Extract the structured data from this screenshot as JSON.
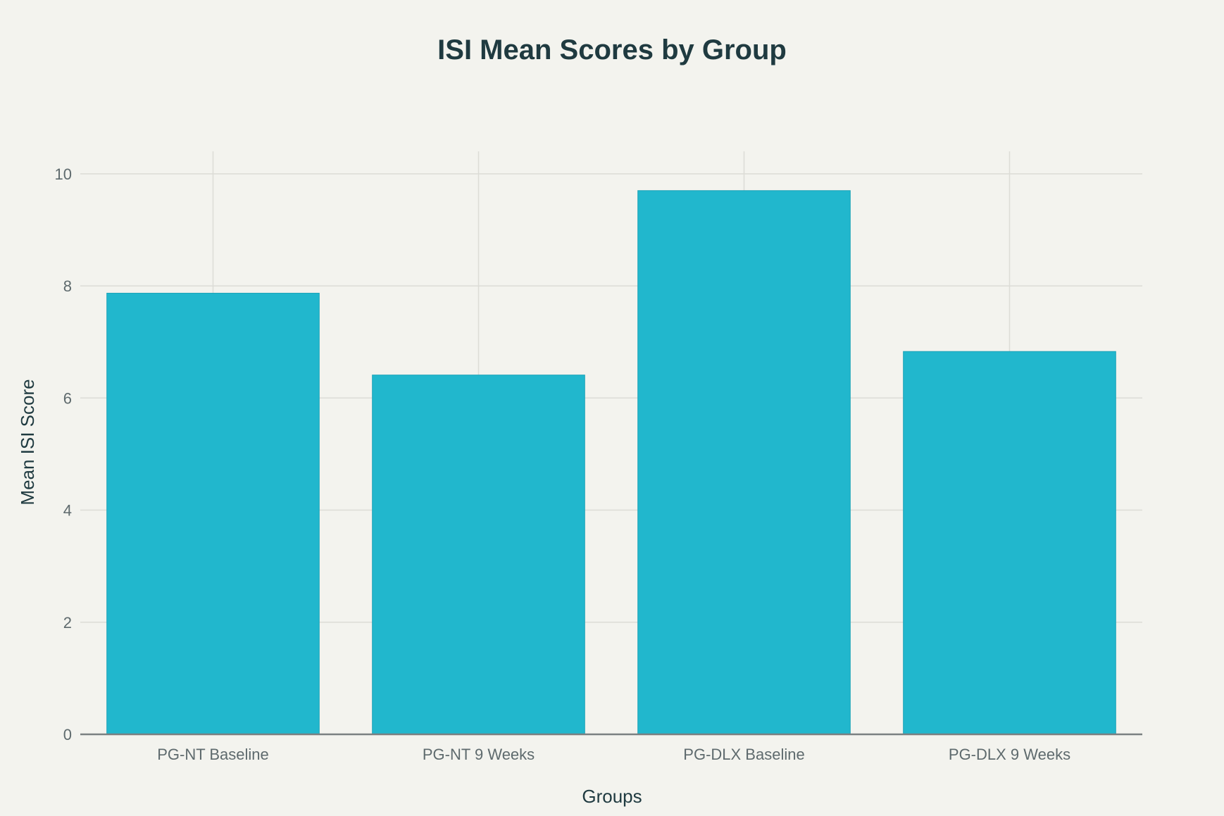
{
  "chart_data": {
    "type": "bar",
    "title": "ISI Mean Scores by Group",
    "xlabel": "Groups",
    "ylabel": "Mean ISI Score",
    "categories": [
      "PG-NT Baseline",
      "PG-NT 9 Weeks",
      "PG-DLX Baseline",
      "PG-DLX 9 Weeks"
    ],
    "values": [
      7.87,
      6.41,
      9.7,
      6.83
    ],
    "ylim": [
      0,
      10.4
    ],
    "yticks": [
      0,
      2,
      4,
      6,
      8,
      10
    ],
    "ytick_labels": [
      "0",
      "2",
      "4",
      "6",
      "8",
      "10"
    ],
    "grid": true,
    "bar_color": "#21b7cd",
    "background_color": "#f3f3ee"
  }
}
